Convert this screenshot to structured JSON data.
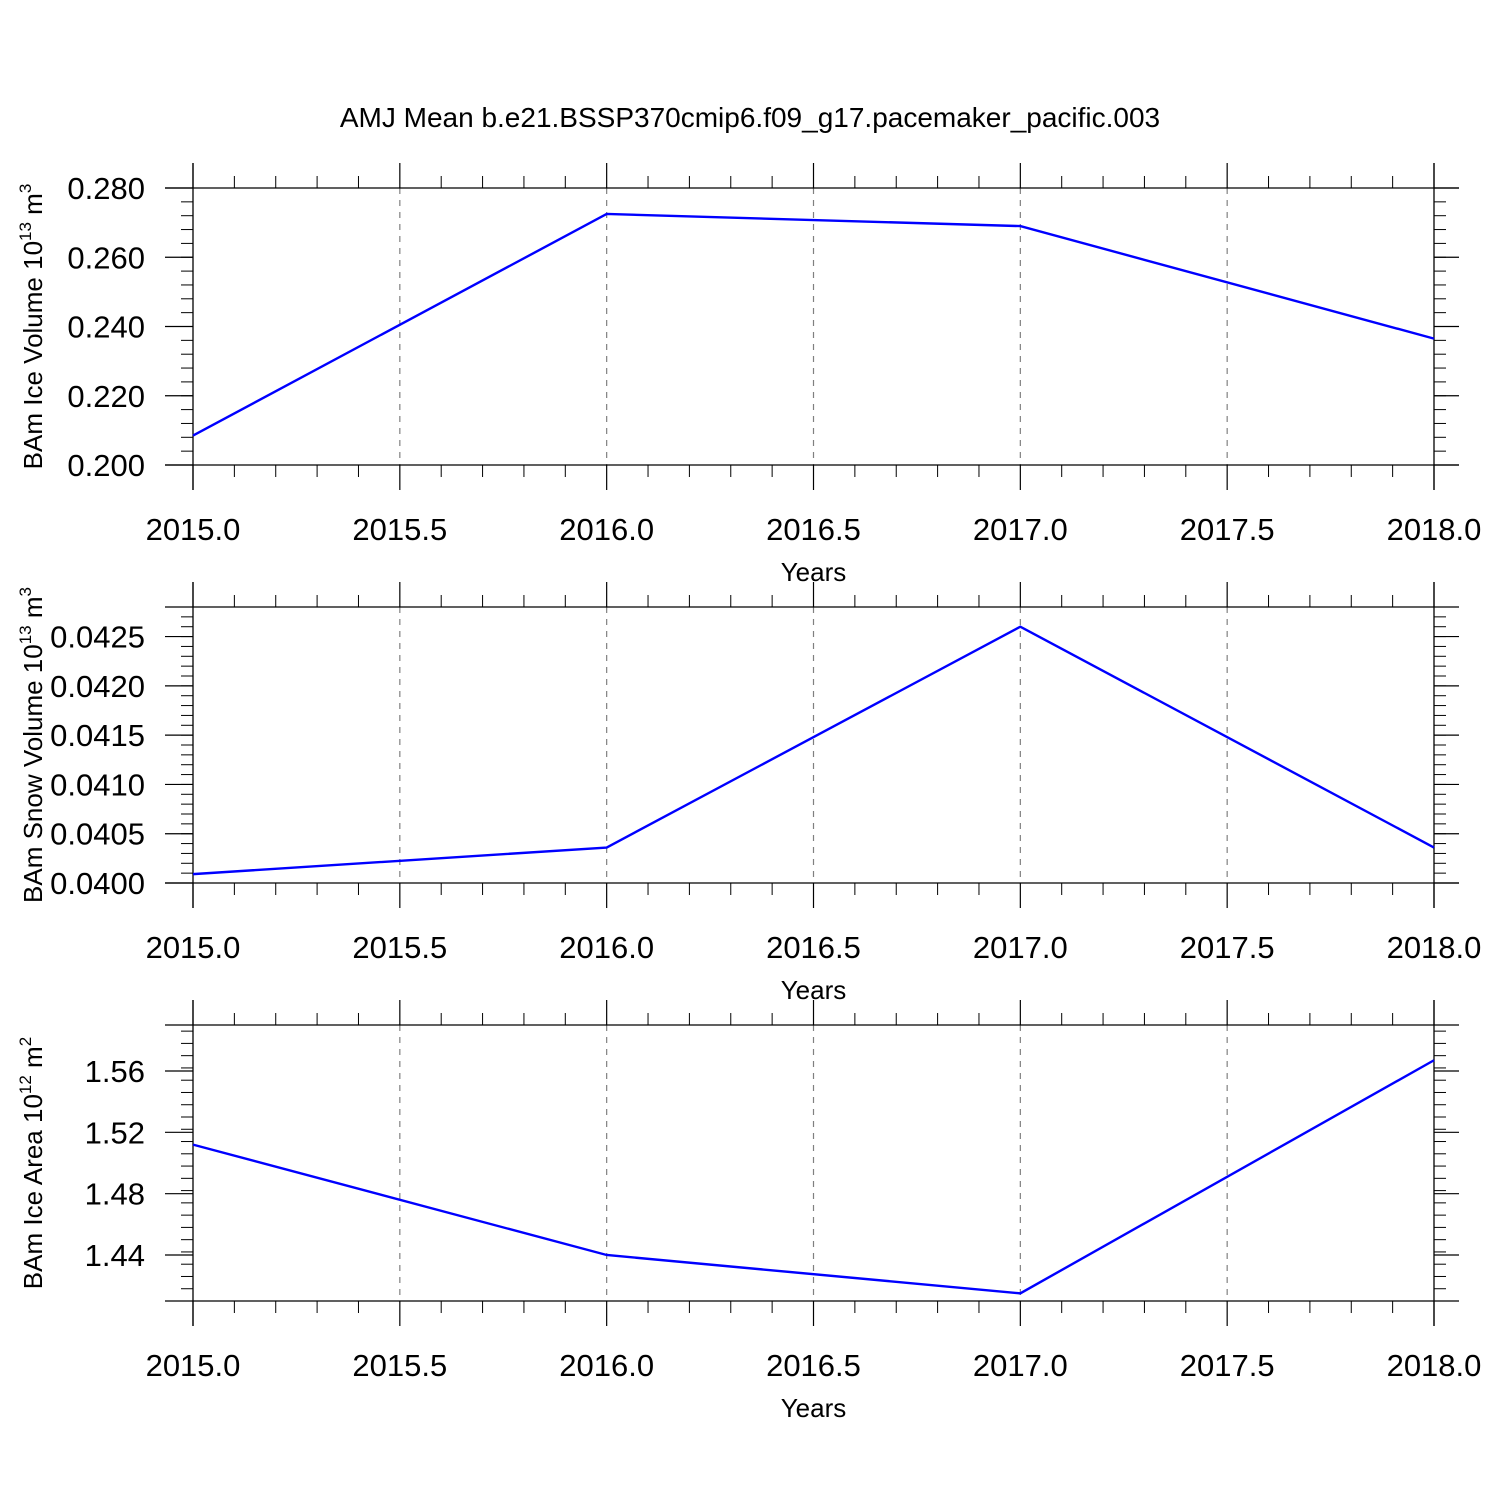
{
  "title": "AMJ Mean b.e21.BSSP370cmip6.f09_g17.pacemaker_pacific.003",
  "colors": {
    "line": "#0000ff",
    "axis": "#000000",
    "grid": "#808080"
  },
  "chart_data": [
    {
      "type": "line",
      "title": "AMJ Mean b.e21.BSSP370cmip6.f09_g17.pacemaker_pacific.003",
      "xlabel": "Years",
      "ylabel": {
        "text": "BAm Ice Volume 10",
        "sup": "13",
        "unit": " m",
        "unit_sup": "3"
      },
      "x": [
        2015.0,
        2016.0,
        2017.0,
        2018.0
      ],
      "y": [
        0.2085,
        0.2725,
        0.269,
        0.2365
      ],
      "xlim": [
        2015.0,
        2018.0
      ],
      "ylim": [
        0.2,
        0.28
      ],
      "xticks": [
        "2015.0",
        "2015.5",
        "2016.0",
        "2016.5",
        "2017.0",
        "2017.5",
        "2018.0"
      ],
      "yticks": [
        "0.200",
        "0.220",
        "0.240",
        "0.260",
        "0.280"
      ],
      "grid": "x-dashed"
    },
    {
      "type": "line",
      "xlabel": "Years",
      "ylabel": {
        "text": "BAm Snow Volume 10",
        "sup": "13",
        "unit": " m",
        "unit_sup": "3"
      },
      "x": [
        2015.0,
        2016.0,
        2017.0,
        2018.0
      ],
      "y": [
        0.04009,
        0.04036,
        0.0426,
        0.04036
      ],
      "xlim": [
        2015.0,
        2018.0
      ],
      "ylim": [
        0.04,
        0.0428
      ],
      "xticks": [
        "2015.0",
        "2015.5",
        "2016.0",
        "2016.5",
        "2017.0",
        "2017.5",
        "2018.0"
      ],
      "yticks": [
        "0.0400",
        "0.0405",
        "0.0410",
        "0.0415",
        "0.0420",
        "0.0425"
      ],
      "grid": "x-dashed"
    },
    {
      "type": "line",
      "xlabel": "Years",
      "ylabel": {
        "text": "BAm Ice Area 10",
        "sup": "12",
        "unit": " m",
        "unit_sup": "2"
      },
      "x": [
        2015.0,
        2016.0,
        2017.0,
        2018.0
      ],
      "y": [
        1.512,
        1.44,
        1.415,
        1.567
      ],
      "xlim": [
        2015.0,
        2018.0
      ],
      "ylim": [
        1.41,
        1.59
      ],
      "xticks": [
        "2015.0",
        "2015.5",
        "2016.0",
        "2016.5",
        "2017.0",
        "2017.5",
        "2018.0"
      ],
      "yticks": [
        "1.44",
        "1.48",
        "1.52",
        "1.56"
      ],
      "grid": "x-dashed"
    }
  ]
}
